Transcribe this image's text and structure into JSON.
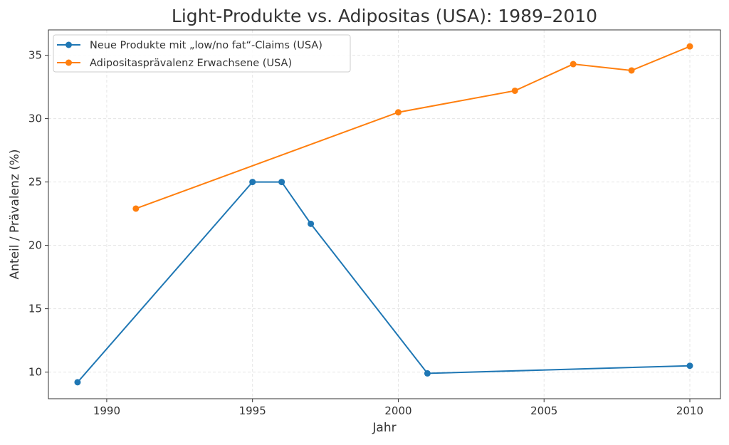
{
  "chart_data": {
    "type": "line",
    "title": "Light-Produkte vs. Adipositas (USA): 1989–2010",
    "xlabel": "Jahr",
    "ylabel": "Anteil / Prävalenz (%)",
    "xlim": [
      1988,
      2011.05
    ],
    "ylim": [
      7.9,
      37
    ],
    "xticks": [
      1990,
      1995,
      2000,
      2005,
      2010
    ],
    "yticks": [
      10,
      15,
      20,
      25,
      30,
      35
    ],
    "grid": true,
    "legend_position": "top-left",
    "series": [
      {
        "name": "Neue Produkte mit „low/no fat“-Claims (USA)",
        "color": "#1f77b4",
        "x": [
          1989,
          1995,
          1996,
          1997,
          2001,
          2010
        ],
        "y": [
          9.2,
          25,
          25,
          21.7,
          9.9,
          10.5
        ]
      },
      {
        "name": "Adipositasprävalenz Erwachsene (USA)",
        "color": "#ff7f0e",
        "x": [
          1991,
          2000,
          2004,
          2006,
          2008,
          2010
        ],
        "y": [
          22.9,
          30.5,
          32.2,
          34.3,
          33.8,
          35.7
        ]
      }
    ]
  }
}
